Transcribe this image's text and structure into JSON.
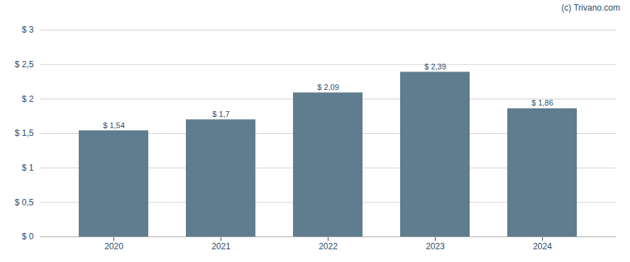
{
  "chart_data": {
    "type": "bar",
    "categories": [
      "2020",
      "2021",
      "2022",
      "2023",
      "2024"
    ],
    "values": [
      1.54,
      1.7,
      2.09,
      2.39,
      1.86
    ],
    "value_labels": [
      "$ 1,54",
      "$ 1,7",
      "$ 2,09",
      "$ 2,39",
      "$ 1,86"
    ],
    "data_labels": true,
    "color": "#5f7d8e",
    "ylim": [
      0,
      3
    ],
    "yticks": [
      {
        "value": 0,
        "label": "$ 0"
      },
      {
        "value": 0.5,
        "label": "$ 0,5"
      },
      {
        "value": 1.0,
        "label": "$ 1"
      },
      {
        "value": 1.5,
        "label": "$ 1,5"
      },
      {
        "value": 2.0,
        "label": "$ 2"
      },
      {
        "value": 2.5,
        "label": "$ 2,5"
      },
      {
        "value": 3.0,
        "label": "$ 3"
      }
    ],
    "grid": true,
    "annotations": [
      "(c) Trivano.com"
    ]
  }
}
